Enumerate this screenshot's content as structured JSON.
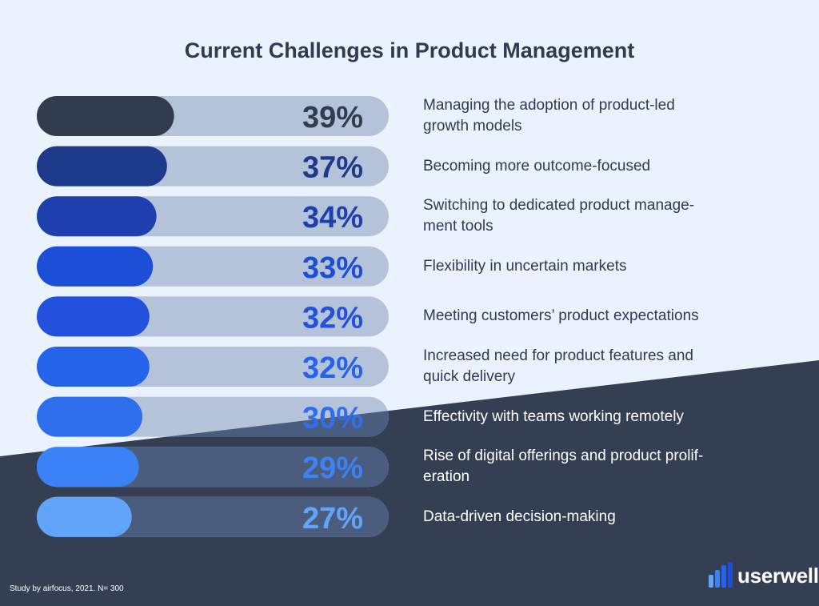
{
  "title": "Current Challenges in Product Management",
  "footnote": "Study by airfocus, 2021. N= 300",
  "logo_text": "userwell",
  "colors": {
    "background_light": "#eaf2fd",
    "background_dark": "#343f54",
    "title": "#2f3b52",
    "fills": [
      "#323c4f",
      "#1e3a8a",
      "#1e40af",
      "#1d4ed8",
      "#2350dc",
      "#2563eb",
      "#2f6fee",
      "#3b82f6",
      "#60a5fa"
    ]
  },
  "chart_data": {
    "type": "bar",
    "orientation": "horizontal",
    "xlim": [
      0,
      100
    ],
    "categories": [
      "Managing the adoption of product-led growth models",
      "Becoming more outcome-focused",
      "Switching to dedicated product management tools",
      "Flexibility in uncertain markets",
      "Meeting customers’ product expectations",
      "Increased need for product features and quick delivery",
      "Effectivity with teams working remotely",
      "Rise of digital offerings and product proliferation",
      "Data-driven decision-making"
    ],
    "values": [
      39,
      37,
      34,
      33,
      32,
      32,
      30,
      29,
      27
    ],
    "data_labels": [
      "39%",
      "37%",
      "34%",
      "33%",
      "32%",
      "32%",
      "30%",
      "29%",
      "27%"
    ],
    "text_lines": [
      [
        "Managing the adoption of product-led",
        "growth models"
      ],
      [
        "Becoming more outcome-focused"
      ],
      [
        "Switching to dedicated product manage-",
        "ment tools"
      ],
      [
        "Flexibility in uncertain markets"
      ],
      [
        "Meeting customers’ product expectations"
      ],
      [
        "Increased need for product features and",
        "quick delivery"
      ],
      [
        "Effectivity with teams working remotely"
      ],
      [
        "Rise of digital offerings and product prolif-",
        "eration"
      ],
      [
        "Data-driven decision-making"
      ]
    ]
  }
}
